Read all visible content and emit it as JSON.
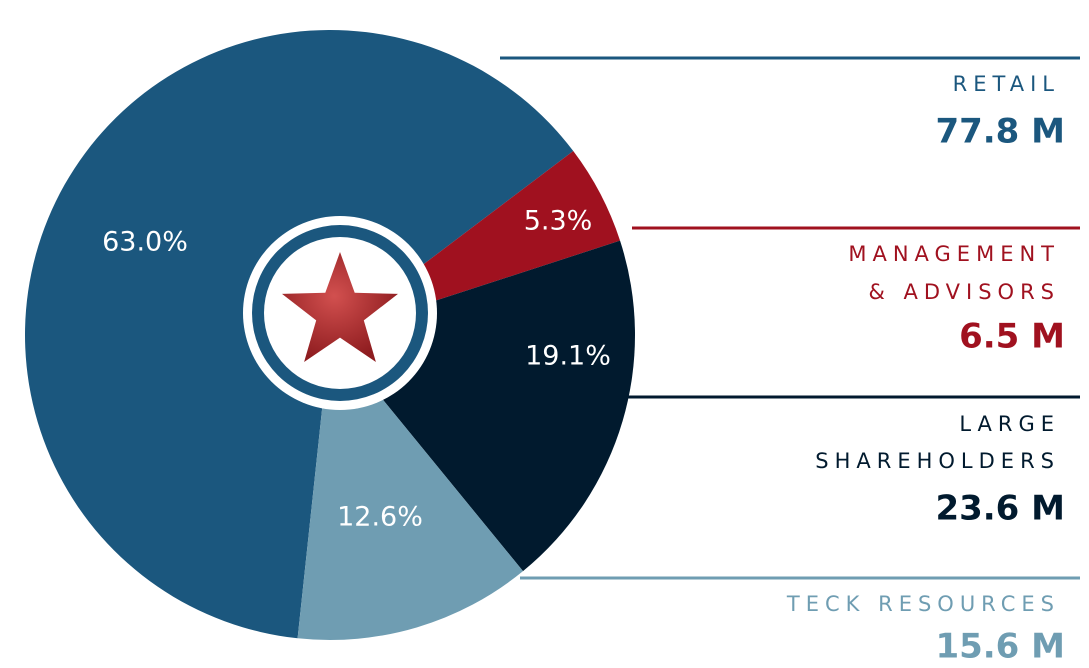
{
  "chart_data": {
    "type": "pie",
    "categories": [
      [
        "RETAIL"
      ],
      [
        "MANAGEMENT",
        "& ADVISORS"
      ],
      [
        "LARGE",
        "SHAREHOLDERS"
      ],
      [
        "TECK RESOURCES"
      ]
    ],
    "values": [
      63.0,
      5.3,
      19.1,
      12.6
    ],
    "value_labels": [
      "63.0%",
      "5.3%",
      "19.1%",
      "12.6%"
    ],
    "amounts": [
      77.8,
      6.5,
      23.6,
      15.6
    ],
    "amount_labels": [
      "77.8 M",
      "6.5 M",
      "23.6 M",
      "15.6 M"
    ],
    "colors": [
      "#1b577e",
      "#a0111f",
      "#011a2e",
      "#6f9db2"
    ]
  }
}
